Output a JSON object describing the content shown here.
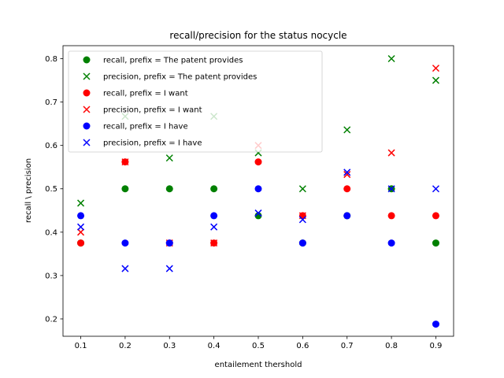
{
  "chart_data": {
    "type": "scatter",
    "title": "recall/precision for the status nocycle",
    "xlabel": "entailement thershold",
    "ylabel": "recall \\ precision",
    "xlim": [
      0.06,
      0.94
    ],
    "ylim": [
      0.16,
      0.83
    ],
    "xticks": [
      "0.1",
      "0.2",
      "0.3",
      "0.4",
      "0.5",
      "0.6",
      "0.7",
      "0.8",
      "0.9"
    ],
    "yticks": [
      "0.2",
      "0.3",
      "0.4",
      "0.5",
      "0.6",
      "0.7",
      "0.8"
    ],
    "grid": false,
    "legend_position": "upper-left",
    "x": [
      0.1,
      0.2,
      0.3,
      0.4,
      0.5,
      0.6,
      0.7,
      0.8,
      0.9
    ],
    "series": [
      {
        "name": "recall, prefix = The patent provides",
        "marker": "circle",
        "color": "#008000",
        "values": [
          0.375,
          0.5,
          0.5,
          0.5,
          0.438,
          0.375,
          0.438,
          0.5,
          0.375
        ]
      },
      {
        "name": "precision, prefix = The patent provides",
        "marker": "x",
        "color": "#008000",
        "values": [
          0.467,
          0.667,
          0.571,
          0.667,
          0.583,
          0.5,
          0.636,
          0.8,
          0.75
        ]
      },
      {
        "name": "recall, prefix = I want",
        "marker": "circle",
        "color": "#ff0000",
        "values": [
          0.375,
          0.562,
          0.375,
          0.375,
          0.562,
          0.438,
          0.5,
          0.438,
          0.438
        ]
      },
      {
        "name": "precision, prefix = I want",
        "marker": "x",
        "color": "#ff0000",
        "values": [
          0.4,
          0.562,
          0.375,
          0.375,
          0.6,
          0.438,
          0.533,
          0.583,
          0.778
        ]
      },
      {
        "name": "recall, prefix = I have",
        "marker": "circle",
        "color": "#0000ff",
        "values": [
          0.438,
          0.375,
          0.375,
          0.438,
          0.5,
          0.375,
          0.438,
          0.375,
          0.188
        ]
      },
      {
        "name": "precision, prefix = I have",
        "marker": "x",
        "color": "#0000ff",
        "values": [
          0.412,
          0.316,
          0.316,
          0.412,
          0.444,
          0.429,
          0.538,
          0.5,
          0.5
        ]
      }
    ]
  }
}
